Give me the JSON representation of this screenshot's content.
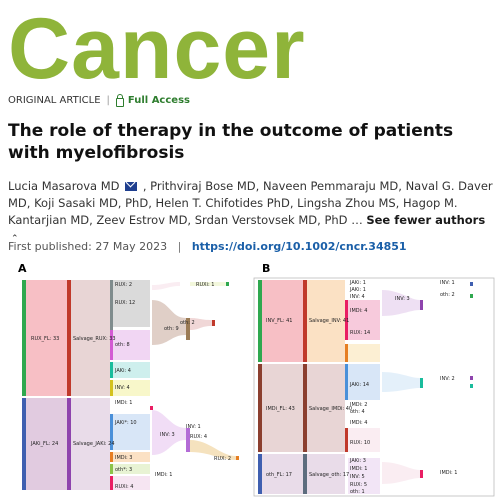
{
  "journal": {
    "logo_text": "Cancer"
  },
  "article_meta": {
    "type": "ORIGINAL ARTICLE",
    "access": "Full Access"
  },
  "article": {
    "title": "The role of therapy in the outcome of patients with myelofibrosis",
    "authors_a": "Lucia Masarova MD",
    "authors_b": ", Prithviraj Bose MD, Naveen Pemmaraju MD, Naval G. Daver MD, Koji Sasaki MD, PhD, Helen T. Chifotides PhD, Lingsha Zhou MS, Hagop M. Kantarjian MD, Zeev Estrov MD, Srdan Verstovsek MD, PhD",
    "authors_toggle": "See fewer authors",
    "first_published_label": "First published:",
    "first_published_date": "27 May 2023",
    "doi": "https://doi.org/10.1002/cncr.34851"
  },
  "figure": {
    "panel_a": {
      "label": "A",
      "nodes": {
        "rux_fl": "RUX_FL: 33",
        "jaki_fl": "JAKi_FL: 24",
        "salvage_rux": "Salvage_RUX: 33",
        "salvage_jaki": "Salvage_JAKi: 24",
        "rux_12": "RUX: 12",
        "rux_2": "RUX: 2",
        "ruxi_1": "RUXi: 1",
        "oth_8": "oth: 8",
        "oth_9": "oth: 9",
        "oth_2": "oth: 2",
        "jaki_4": "JAKi: 4",
        "inv_4": "INV: 4",
        "imdi_1": "IMDi: 1",
        "jaki_10": "JAKi*: 10",
        "inv_3": "INV: 3",
        "inv1_1": "INV: 1",
        "rux_4": "RUX: 4",
        "rux_2b": "RUX: 2",
        "imd_3": "IMDi: 3",
        "oth_3": "oth*: 3",
        "imdi_2": "IMDi: 1",
        "ruxi_4": "RUXi: 4"
      }
    },
    "panel_b": {
      "label": "B",
      "nodes": {
        "inv_fl": "INV_FL: 41",
        "imd_fl": "IMDi_FL: 43",
        "oth_fl": "oth_FL: 17",
        "salvage_inv": "Salvage_INV: 41",
        "salvage_imd": "Salvage_IMDi: 40",
        "salvage_oth": "Salvage_oth: 17",
        "jaki_1": "JAKi: 1",
        "jaki_2": "JAKi: 1",
        "inv_4": "INV: 4",
        "imd_4": "IMDi: 4",
        "rux_14": "RUX: 14",
        "inv_3": "INV: 3",
        "oth_2": "oth: 2",
        "jaki_14": "JAKi: 14",
        "imd_2": "IMDi: 2",
        "oth_4": "oth: 4",
        "inv_2": "INV: 2",
        "imd_9": "IMDi: 4",
        "rux_10": "RUX: 10",
        "jaki_3": "JAKi: 3",
        "imd_1": "IMDi: 1",
        "inv_5": "INV: 5",
        "rux_5": "RUX: 5",
        "oth_1": "oth: 1",
        "imd_1b": "IMDi: 1",
        "inv_1": "INV: 1"
      }
    }
  }
}
